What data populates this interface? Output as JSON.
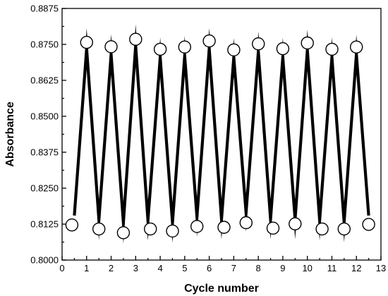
{
  "chart_data": {
    "type": "line",
    "title": "",
    "xlabel": "Cycle number",
    "ylabel": "Absorbance",
    "xlim": [
      0,
      13
    ],
    "ylim": [
      0.8,
      0.8875
    ],
    "x_ticks": [
      0,
      1,
      2,
      3,
      4,
      5,
      6,
      7,
      8,
      9,
      10,
      11,
      12,
      13
    ],
    "y_ticks": [
      0.8,
      0.8125,
      0.825,
      0.8375,
      0.85,
      0.8625,
      0.875,
      0.8875
    ],
    "y_tick_labels": [
      "0.8000",
      "0.8125",
      "0.8250",
      "0.8375",
      "0.8500",
      "0.8625",
      "0.8750",
      "0.8875"
    ],
    "grid": false,
    "series": [
      {
        "line_x": [
          0.5,
          1.0,
          1.5,
          2.0,
          2.5,
          3.0,
          3.5,
          4.0,
          4.5,
          5.0,
          5.5,
          6.0,
          6.5,
          7.0,
          7.5,
          8.0,
          8.5,
          9.0,
          9.5,
          10.0,
          10.5,
          11.0,
          11.5,
          12.0,
          12.5
        ],
        "line_y": [
          0.8155,
          0.8735,
          0.814,
          0.8715,
          0.813,
          0.8745,
          0.8138,
          0.8705,
          0.813,
          0.871,
          0.815,
          0.8735,
          0.8142,
          0.8705,
          0.8165,
          0.8725,
          0.8142,
          0.8705,
          0.8142,
          0.873,
          0.8138,
          0.8705,
          0.8132,
          0.8715,
          0.8155
        ],
        "marker_x": [
          0.4,
          1.0,
          1.5,
          2.0,
          2.5,
          3.0,
          3.6,
          4.0,
          4.5,
          5.0,
          5.5,
          6.0,
          6.6,
          7.0,
          7.5,
          8.0,
          8.6,
          9.0,
          9.5,
          10.0,
          10.6,
          11.0,
          11.5,
          12.0,
          12.5
        ],
        "marker_y": [
          0.8122,
          0.8757,
          0.8108,
          0.8742,
          0.8095,
          0.8768,
          0.8108,
          0.8733,
          0.8101,
          0.8741,
          0.8117,
          0.8762,
          0.8114,
          0.8731,
          0.813,
          0.8752,
          0.8111,
          0.8735,
          0.8126,
          0.8755,
          0.8108,
          0.8733,
          0.8108,
          0.8741,
          0.8124
        ],
        "color": "#000000",
        "marker": "open-circle"
      }
    ]
  }
}
